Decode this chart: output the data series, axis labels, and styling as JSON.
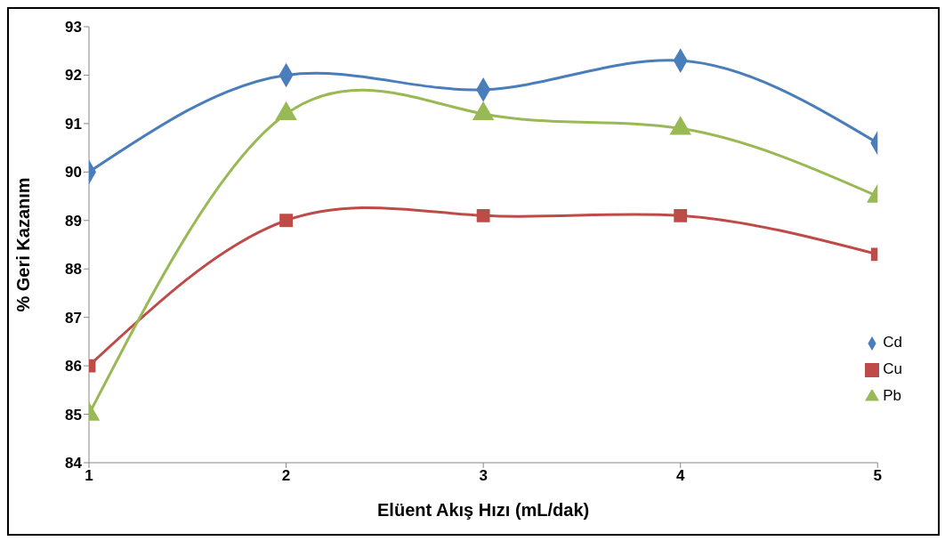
{
  "chart_data": {
    "type": "line",
    "xlabel": "Elüent Akış Hızı (mL/dak)",
    "ylabel": "% Geri Kazanım",
    "x": [
      1,
      2,
      3,
      4,
      5
    ],
    "xlim": [
      1,
      5
    ],
    "xticks": [
      1,
      2,
      3,
      4,
      5
    ],
    "ylim": [
      84,
      93
    ],
    "yticks": [
      84,
      85,
      86,
      87,
      88,
      89,
      90,
      91,
      92,
      93
    ],
    "grid": false,
    "legend": "right",
    "line_style": "solid",
    "series": [
      {
        "name": "Cd",
        "color": "#4a7ebb",
        "marker": "diamond",
        "values": [
          90,
          92,
          91.7,
          92.3,
          90.6
        ]
      },
      {
        "name": "Cu",
        "color": "#be4b48",
        "marker": "square",
        "values": [
          86,
          89,
          89.1,
          89.1,
          88.3
        ]
      },
      {
        "name": "Pb",
        "color": "#98b954",
        "marker": "triangle",
        "values": [
          85,
          91.2,
          91.2,
          90.9,
          89.5
        ]
      }
    ]
  }
}
